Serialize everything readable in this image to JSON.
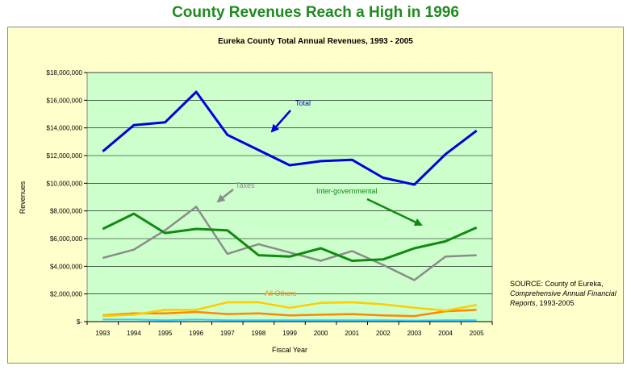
{
  "page": {
    "title": "County Revenues Reach a High in 1996"
  },
  "source": {
    "line1": "SOURCE: County of Eureka,",
    "line2_italic": "Comprehensive Annual Financial Reports",
    "line2_tail": ", 1993-2005"
  },
  "chart_data": {
    "type": "line",
    "title": "Eureka County Total Annual Revenues, 1993 - 2005",
    "xlabel": "Fiscal Year",
    "ylabel": "Revenues",
    "ylim": [
      0,
      18000000
    ],
    "yticks": [
      0,
      2000000,
      4000000,
      6000000,
      8000000,
      10000000,
      12000000,
      14000000,
      16000000,
      18000000
    ],
    "ytick_labels": [
      "$-",
      "$2,000,000",
      "$4,000,000",
      "$6,000,000",
      "$8,000,000",
      "$10,000,000",
      "$12,000,000",
      "$14,000,000",
      "$16,000,000",
      "$18,000,000"
    ],
    "x": [
      "1993",
      "1994",
      "1995",
      "1996",
      "1997",
      "1998",
      "1999",
      "2000",
      "2001",
      "2002",
      "2003",
      "2004",
      "2005"
    ],
    "grid": true,
    "series": [
      {
        "name": "Total",
        "color": "#0000dd",
        "width": 3,
        "values": [
          12300000,
          14200000,
          14400000,
          16600000,
          13500000,
          12400000,
          11300000,
          11600000,
          11700000,
          10400000,
          9900000,
          12100000,
          13800000
        ]
      },
      {
        "name": "Taxes",
        "color": "#8c8c8c",
        "width": 2.5,
        "values": [
          4600000,
          5200000,
          6600000,
          8300000,
          4900000,
          5600000,
          5000000,
          4400000,
          5100000,
          4100000,
          3000000,
          4700000,
          4800000
        ]
      },
      {
        "name": "Inter-governmental",
        "color": "#128a12",
        "width": 3,
        "values": [
          6700000,
          7800000,
          6400000,
          6700000,
          6600000,
          4800000,
          4700000,
          5300000,
          4400000,
          4500000,
          5300000,
          5800000,
          6800000
        ]
      },
      {
        "name": "All Others",
        "color": "#ff8800",
        "width": 2.5,
        "values": [
          450000,
          600000,
          600000,
          700000,
          550000,
          600000,
          450000,
          500000,
          550000,
          450000,
          400000,
          750000,
          850000
        ]
      },
      {
        "name": "",
        "color": "#ffcc00",
        "width": 2.5,
        "values": [
          400000,
          500000,
          850000,
          850000,
          1400000,
          1400000,
          1000000,
          1350000,
          1400000,
          1250000,
          1000000,
          800000,
          1200000
        ]
      },
      {
        "name": "",
        "color": "#33ccff",
        "width": 2,
        "values": [
          150000,
          150000,
          100000,
          150000,
          100000,
          100000,
          100000,
          100000,
          100000,
          100000,
          80000,
          100000,
          100000
        ]
      }
    ],
    "annotations": [
      {
        "text": "Total",
        "series": "Total",
        "color": "#0000dd"
      },
      {
        "text": "Taxes",
        "series": "Taxes",
        "color": "#8c8c8c"
      },
      {
        "text": "Inter-governmental",
        "series": "Inter-governmental",
        "color": "#128a12"
      },
      {
        "text": "All Others",
        "series": "All Others",
        "color": "#ff8800"
      }
    ]
  }
}
